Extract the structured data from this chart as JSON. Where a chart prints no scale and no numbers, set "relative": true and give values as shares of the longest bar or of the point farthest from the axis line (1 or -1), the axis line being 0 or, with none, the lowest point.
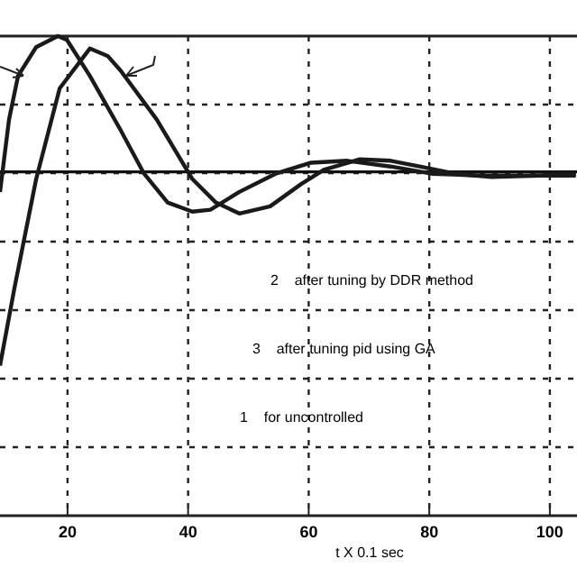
{
  "chart_data": {
    "type": "line",
    "relative": true,
    "xlabel": "t X 0.1 sec",
    "xlim": [
      8.8,
      104.5
    ],
    "xticks": [
      20,
      40,
      60,
      80,
      100
    ],
    "grid": true,
    "line_style": "solid",
    "marker": "none",
    "series": [
      {
        "color": "#1a1a1a",
        "x": [
          8.8,
          10.3,
          11.8,
          14.8,
          18.4,
          19.9,
          23.7,
          28.8,
          32.7,
          36.6,
          40.7,
          43.7,
          48.5,
          54.5,
          60.4,
          66.4,
          73.6,
          80.4,
          88.5,
          98.4,
          104.3
        ],
        "values": [
          0.675,
          0.826,
          0.917,
          0.977,
          1,
          0.992,
          0.917,
          0.804,
          0.713,
          0.653,
          0.634,
          0.638,
          0.675,
          0.713,
          0.736,
          0.74,
          0.728,
          0.713,
          0.709,
          0.709,
          0.713
        ]
      },
      {
        "color": "#1a1a1a",
        "x": [
          8.8,
          11.2,
          14.8,
          18.7,
          23.7,
          26.7,
          28.8,
          34.8,
          40.7,
          44.6,
          48.5,
          53.6,
          58.7,
          62.5,
          68.5,
          73.6,
          78.4,
          84.3,
          90.3,
          98.4,
          104.3
        ],
        "values": [
          0.313,
          0.475,
          0.702,
          0.891,
          0.974,
          0.958,
          0.928,
          0.826,
          0.702,
          0.653,
          0.63,
          0.645,
          0.691,
          0.721,
          0.743,
          0.74,
          0.728,
          0.713,
          0.706,
          0.709,
          0.709
        ]
      }
    ],
    "ref_lines": [
      {
        "axis": "y",
        "value": 0.717
      }
    ],
    "annotations": [
      "2    after tuning by DDR method",
      "3    after tuning pid using GA",
      "1    for uncontrolled"
    ]
  }
}
